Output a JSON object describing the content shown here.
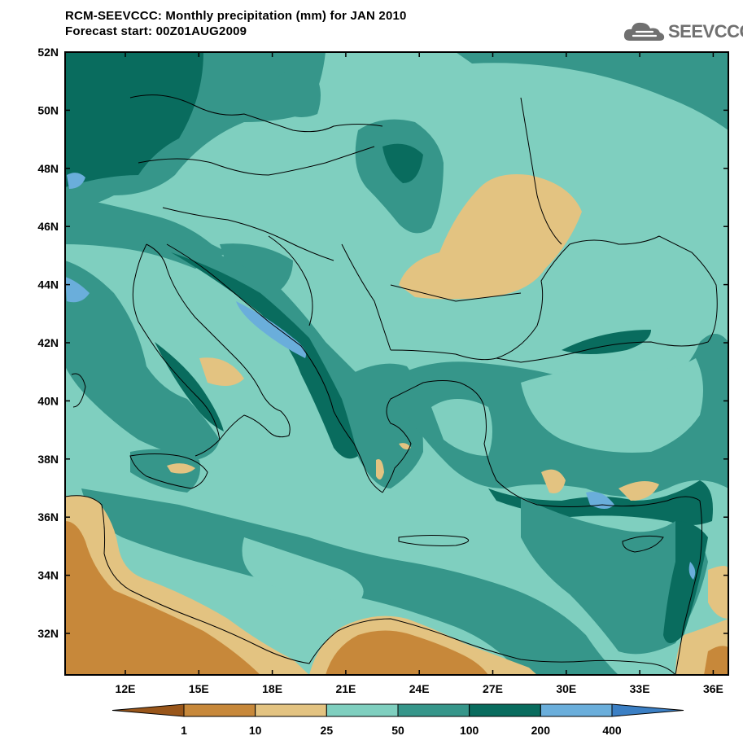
{
  "header": {
    "title_line1": "RCM-SEEVCCC: Monthly precipitation (mm) for JAN 2010",
    "title_line2": "Forecast start: 00Z01AUG2009"
  },
  "logo": {
    "text": "SEEVCCC",
    "icon": "cloud-icon"
  },
  "map": {
    "lat_labels": [
      "52N",
      "50N",
      "48N",
      "46N",
      "44N",
      "42N",
      "40N",
      "38N",
      "36N",
      "34N",
      "32N"
    ],
    "lon_labels": [
      "12E",
      "15E",
      "18E",
      "21E",
      "24E",
      "27E",
      "30E",
      "33E",
      "36E"
    ]
  },
  "colorbar": {
    "boundaries": [
      "1",
      "10",
      "25",
      "50",
      "100",
      "200",
      "400"
    ],
    "colors": [
      "#99561a",
      "#c7883a",
      "#e3c381",
      "#7fcfbf",
      "#36968a",
      "#096c5e",
      "#6aaedb",
      "#3b7fc4"
    ]
  },
  "colors": {
    "c25": "#7fcfbf",
    "c50": "#36968a",
    "c100": "#096c5e",
    "c200": "#6aaedb",
    "c10": "#e3c381",
    "c1": "#c7883a",
    "c0": "#99561a"
  }
}
